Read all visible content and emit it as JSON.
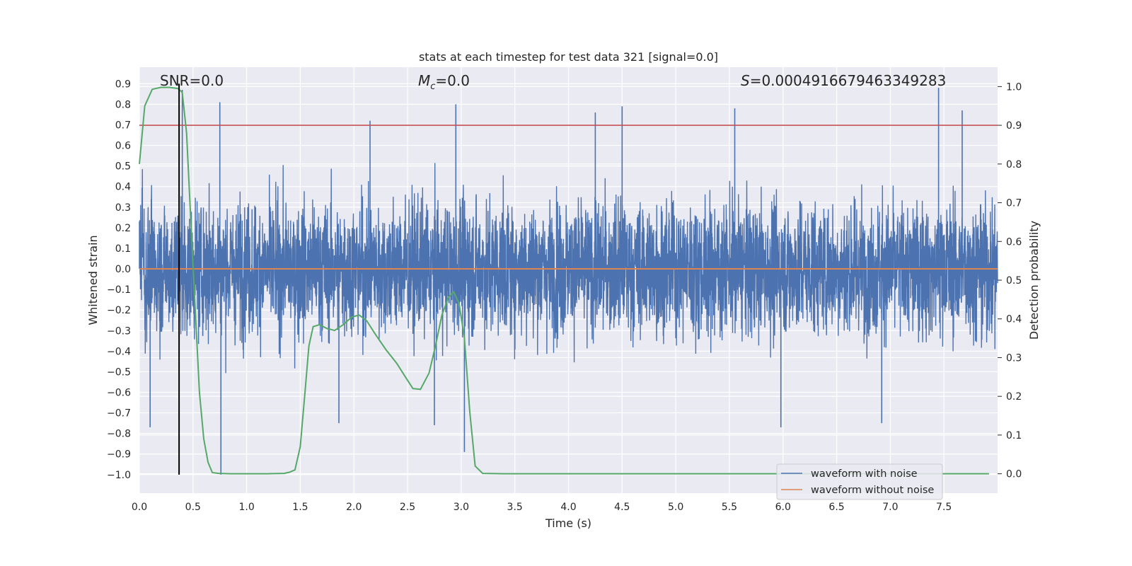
{
  "chart_data": {
    "type": "line",
    "title": "stats at each timestep for test data 321 [signal=0.0]",
    "xlabel": "Time (s)",
    "ylabel_left": "Whitened strain",
    "ylabel_right": "Detection probability",
    "xlim": [
      0.0,
      8.0
    ],
    "ylim_left": [
      -1.09,
      0.98
    ],
    "ylim_right": [
      -0.05,
      1.05
    ],
    "x_ticks": [
      "0.0",
      "0.5",
      "1.0",
      "1.5",
      "2.0",
      "2.5",
      "3.0",
      "3.5",
      "4.0",
      "4.5",
      "5.0",
      "5.5",
      "6.0",
      "6.5",
      "7.0",
      "7.5"
    ],
    "y_left_ticks": [
      "0.9",
      "0.8",
      "0.7",
      "0.6",
      "0.5",
      "0.4",
      "0.3",
      "0.2",
      "0.1",
      "0.0",
      "−0.1",
      "−0.2",
      "−0.3",
      "−0.4",
      "−0.5",
      "−0.6",
      "−0.7",
      "−0.8",
      "−0.9",
      "−1.0"
    ],
    "y_right_ticks": [
      "1.0",
      "0.9",
      "0.8",
      "0.7",
      "0.6",
      "0.5",
      "0.4",
      "0.3",
      "0.2",
      "0.1",
      "0.0"
    ],
    "grid": true,
    "annotations": {
      "snr": "SNR=0.0",
      "mc_symbol": "M",
      "mc_sub": "c",
      "mc_value": "=0.0",
      "s_symbol": "S",
      "s_value": "=0.0004916679463349283"
    },
    "threshold": {
      "axis": "right",
      "value": 0.9,
      "color": "#c44e52"
    },
    "marker_line": {
      "x": 0.37,
      "y_from": -1.0,
      "y_to": 0.9,
      "color": "#000000"
    },
    "legend": {
      "placement": "lower-right",
      "entries": [
        {
          "label": "waveform with noise",
          "color": "#4c72b0"
        },
        {
          "label": "waveform without noise",
          "color": "#dd8452"
        }
      ]
    },
    "series": [
      {
        "name": "waveform with noise",
        "axis": "left",
        "color": "#4c72b0",
        "style": "dense noise, envelope ±0.3 to ±0.5",
        "peak_spikes": [
          {
            "x": 0.4,
            "y": 0.87
          },
          {
            "x": 0.75,
            "y": 0.81
          },
          {
            "x": 2.15,
            "y": 0.72
          },
          {
            "x": 2.95,
            "y": 0.8
          },
          {
            "x": 4.25,
            "y": 0.76
          },
          {
            "x": 4.5,
            "y": 0.79
          },
          {
            "x": 5.55,
            "y": 0.78
          },
          {
            "x": 7.45,
            "y": 0.88
          },
          {
            "x": 7.67,
            "y": 0.77
          },
          {
            "x": 0.76,
            "y": -1.0
          },
          {
            "x": 3.03,
            "y": -0.89
          },
          {
            "x": 0.1,
            "y": -0.77
          },
          {
            "x": 1.86,
            "y": -0.75
          },
          {
            "x": 2.75,
            "y": -0.76
          },
          {
            "x": 5.98,
            "y": -0.77
          },
          {
            "x": 6.92,
            "y": -0.75
          }
        ]
      },
      {
        "name": "waveform without noise",
        "axis": "left",
        "color": "#dd8452",
        "x": [
          0.0,
          8.0
        ],
        "y": [
          0.0,
          0.0
        ]
      },
      {
        "name": "detection probability",
        "axis": "right",
        "color": "#55a868",
        "x": [
          0.0,
          0.05,
          0.12,
          0.2,
          0.28,
          0.36,
          0.4,
          0.44,
          0.48,
          0.52,
          0.56,
          0.6,
          0.64,
          0.68,
          0.74,
          0.85,
          1.0,
          1.2,
          1.35,
          1.4,
          1.45,
          1.5,
          1.55,
          1.58,
          1.62,
          1.68,
          1.75,
          1.82,
          1.9,
          1.98,
          2.05,
          2.12,
          2.2,
          2.3,
          2.4,
          2.48,
          2.55,
          2.62,
          2.7,
          2.76,
          2.82,
          2.88,
          2.93,
          2.98,
          3.03,
          3.08,
          3.13,
          3.2,
          3.4,
          4.0,
          5.0,
          6.0,
          7.0,
          7.92
        ],
        "y": [
          0.8,
          0.95,
          0.993,
          0.998,
          0.998,
          0.995,
          0.985,
          0.88,
          0.65,
          0.43,
          0.21,
          0.09,
          0.03,
          0.003,
          0.001,
          0.0,
          0.0,
          0.0,
          0.001,
          0.004,
          0.01,
          0.07,
          0.23,
          0.33,
          0.38,
          0.385,
          0.375,
          0.37,
          0.385,
          0.405,
          0.41,
          0.395,
          0.36,
          0.32,
          0.285,
          0.25,
          0.22,
          0.218,
          0.26,
          0.33,
          0.41,
          0.455,
          0.47,
          0.44,
          0.35,
          0.16,
          0.02,
          0.001,
          0.0,
          0.0,
          0.0,
          0.0,
          0.0,
          0.0
        ]
      }
    ]
  }
}
